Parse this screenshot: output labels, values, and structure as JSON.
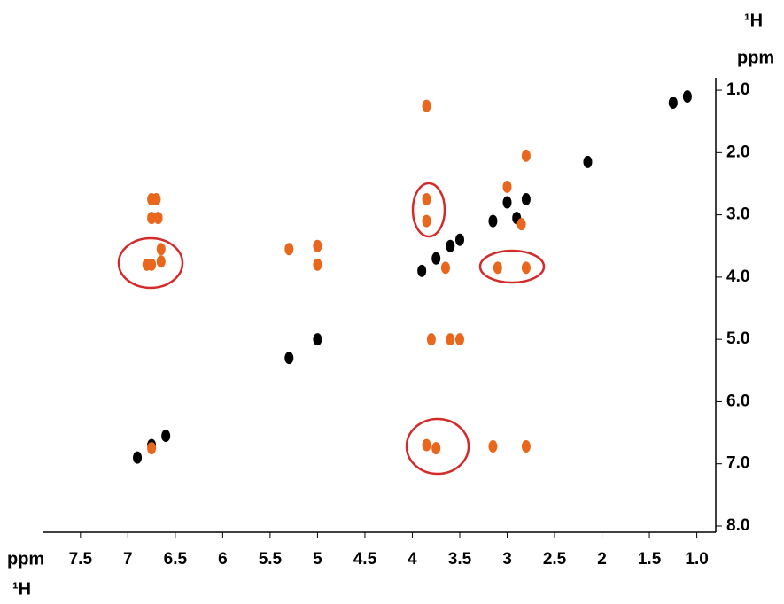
{
  "chart_data": {
    "type": "scatter",
    "x_label_unit": "ppm",
    "x_label": "¹H",
    "y_label": "¹H",
    "y_label_unit": "ppm",
    "xlim": [
      7.9,
      0.8
    ],
    "ylim": [
      0.8,
      8.1
    ],
    "xticks": [
      7.5,
      7,
      6.5,
      6,
      5.5,
      5,
      4.5,
      4,
      3.5,
      3,
      2.5,
      2,
      1.5,
      {
        "value": 1,
        "label": "1.0"
      }
    ],
    "yticks": [
      {
        "value": 1,
        "label": "1.0"
      },
      {
        "value": 2,
        "label": "2.0"
      },
      {
        "value": 3,
        "label": "3.0"
      },
      {
        "value": 4,
        "label": "4.0"
      },
      {
        "value": 5,
        "label": "5.0"
      },
      {
        "value": 6,
        "label": "6.0"
      },
      {
        "value": 7,
        "label": "7.0"
      },
      {
        "value": 8,
        "label": "8.0"
      }
    ],
    "xticks_labels": [],
    "series": [
      {
        "color": "#000000",
        "x": [
          1.1,
          1.25,
          2.15,
          2.8,
          3.0,
          3.15,
          2.9,
          3.6,
          3.75,
          3.9,
          3.5,
          5.0,
          5.3,
          6.75,
          6.9,
          6.6
        ],
        "values": [
          1.1,
          1.2,
          2.15,
          2.75,
          2.8,
          3.1,
          3.05,
          3.5,
          3.7,
          3.9,
          3.4,
          5.0,
          5.3,
          6.7,
          6.9,
          6.55
        ]
      },
      {
        "color": "#e8671c",
        "x": [
          3.85,
          2.8,
          6.75,
          6.7,
          6.75,
          6.68,
          6.65,
          6.8,
          6.75,
          6.65,
          5.3,
          5.0,
          5.0,
          3.85,
          3.85,
          3.1,
          2.8,
          3.8,
          3.6,
          3.5,
          3.85,
          3.75,
          3.15,
          2.8,
          6.75,
          2.85,
          3.0,
          3.65
        ],
        "values": [
          1.25,
          2.05,
          2.75,
          2.75,
          3.05,
          3.05,
          3.55,
          3.8,
          3.8,
          3.75,
          3.55,
          3.5,
          3.8,
          2.75,
          3.1,
          3.85,
          3.85,
          5.0,
          5.0,
          5.0,
          6.7,
          6.75,
          6.72,
          6.72,
          6.75,
          3.15,
          2.55,
          3.85
        ]
      }
    ]
  }
}
